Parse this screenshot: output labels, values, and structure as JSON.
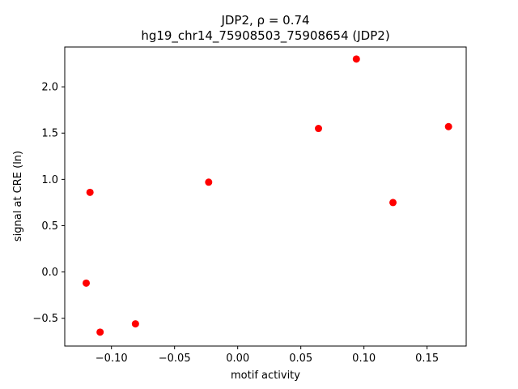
{
  "chart_data": {
    "type": "scatter",
    "title": "JDP2, ρ = 0.74",
    "subtitle": "hg19_chr14_75908503_75908654 (JDP2)",
    "xlabel": "motif activity",
    "ylabel": "signal at CRE (ln)",
    "xlim": [
      -0.137,
      0.181
    ],
    "ylim": [
      -0.8,
      2.43
    ],
    "xticks": [
      -0.1,
      -0.05,
      0.0,
      0.05,
      0.1,
      0.15
    ],
    "xtick_labels": [
      "−0.10",
      "−0.05",
      "0.00",
      "0.05",
      "0.10",
      "0.15"
    ],
    "yticks": [
      -0.5,
      0.0,
      0.5,
      1.0,
      1.5,
      2.0
    ],
    "ytick_labels": [
      "−0.5",
      "0.0",
      "0.5",
      "1.0",
      "1.5",
      "2.0"
    ],
    "grid": false,
    "marker_color": "#ff0000",
    "points": [
      {
        "x": -0.12,
        "y": -0.12
      },
      {
        "x": -0.117,
        "y": 0.86
      },
      {
        "x": -0.109,
        "y": -0.65
      },
      {
        "x": -0.081,
        "y": -0.56
      },
      {
        "x": -0.023,
        "y": 0.97
      },
      {
        "x": 0.064,
        "y": 1.55
      },
      {
        "x": 0.094,
        "y": 2.3
      },
      {
        "x": 0.123,
        "y": 0.75
      },
      {
        "x": 0.167,
        "y": 1.57
      }
    ]
  }
}
